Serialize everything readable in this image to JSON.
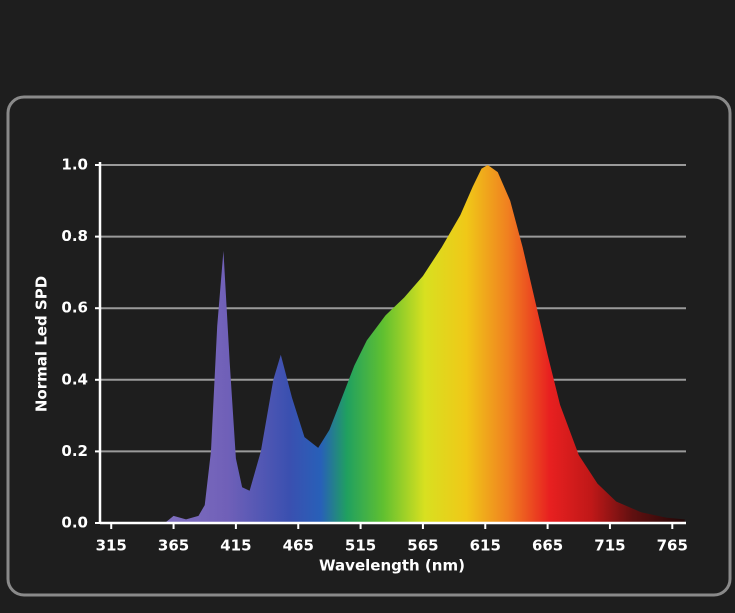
{
  "chart_data": {
    "type": "area",
    "xlabel": "Wavelength (nm)",
    "ylabel": "Normal Led SPD",
    "x": [
      358,
      365,
      375,
      385,
      390,
      395,
      400,
      405,
      410,
      415,
      420,
      426,
      435,
      445,
      451,
      460,
      470,
      481,
      490,
      500,
      510,
      520,
      535,
      550,
      565,
      580,
      595,
      605,
      612,
      617,
      625,
      635,
      645,
      655,
      665,
      675,
      690,
      705,
      720,
      740,
      760,
      775
    ],
    "values": [
      0,
      0.02,
      0.01,
      0.02,
      0.05,
      0.2,
      0.55,
      0.76,
      0.45,
      0.18,
      0.1,
      0.09,
      0.2,
      0.4,
      0.47,
      0.35,
      0.24,
      0.21,
      0.26,
      0.35,
      0.44,
      0.51,
      0.58,
      0.63,
      0.69,
      0.77,
      0.86,
      0.94,
      0.99,
      1.0,
      0.98,
      0.9,
      0.77,
      0.62,
      0.47,
      0.33,
      0.19,
      0.11,
      0.06,
      0.03,
      0.015,
      0.01
    ],
    "xlim": [
      306,
      776
    ],
    "ylim": [
      0,
      1
    ],
    "xticks": [
      315,
      365,
      415,
      465,
      515,
      565,
      615,
      665,
      715,
      765
    ],
    "yticks": [
      {
        "value": 0,
        "label": "0.0"
      },
      0.2,
      0.4,
      0.6,
      0.8,
      {
        "value": 1,
        "label": "1.0"
      }
    ],
    "grid": true
  }
}
